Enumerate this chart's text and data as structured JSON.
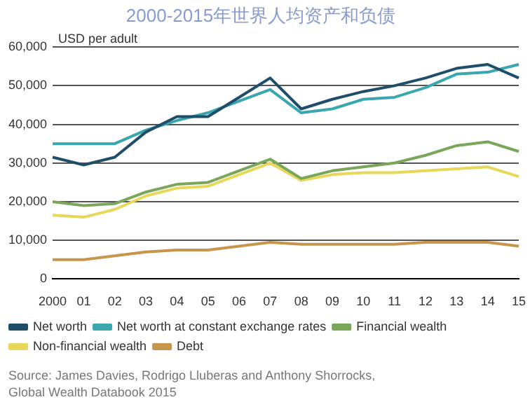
{
  "chart_data": {
    "type": "line",
    "title": "2000-2015年世界人均资产和负债",
    "ylabel": "USD per adult",
    "categories": [
      "2000",
      "01",
      "02",
      "03",
      "04",
      "05",
      "06",
      "07",
      "08",
      "09",
      "10",
      "11",
      "12",
      "13",
      "14",
      "15"
    ],
    "series": [
      {
        "name": "Net worth",
        "color": "#1f4e6b",
        "values": [
          31500,
          29500,
          31500,
          38000,
          42000,
          42000,
          47000,
          52000,
          44000,
          46500,
          48500,
          50000,
          52000,
          54500,
          55500,
          52000
        ]
      },
      {
        "name": "Net worth at constant exchange rates",
        "color": "#3aa6b0",
        "values": [
          35000,
          35000,
          35000,
          38500,
          41000,
          43000,
          46000,
          49000,
          43000,
          44000,
          46500,
          47000,
          49500,
          53000,
          53500,
          55500
        ]
      },
      {
        "name": "Financial wealth",
        "color": "#7aa65a",
        "values": [
          20000,
          19000,
          19500,
          22500,
          24500,
          25000,
          28000,
          31000,
          26000,
          28000,
          29000,
          30000,
          32000,
          34500,
          35500,
          33000
        ]
      },
      {
        "name": "Non-financial wealth",
        "color": "#e8d85a",
        "values": [
          16500,
          16000,
          18000,
          21500,
          23500,
          24000,
          27000,
          30000,
          25500,
          27000,
          27500,
          27500,
          28000,
          28500,
          29000,
          26500
        ]
      },
      {
        "name": "Debt",
        "color": "#c8964a",
        "values": [
          5000,
          5000,
          6000,
          7000,
          7500,
          7500,
          8500,
          9500,
          9000,
          9000,
          9000,
          9000,
          9500,
          9500,
          9500,
          8500
        ]
      }
    ],
    "ylim": [
      0,
      60000
    ],
    "yticks": [
      {
        "value": 0,
        "label": "0"
      },
      {
        "value": 10000,
        "label": "10,000"
      },
      {
        "value": 20000,
        "label": "20,000"
      },
      {
        "value": 30000,
        "label": "30,000"
      },
      {
        "value": 40000,
        "label": "40,000"
      },
      {
        "value": 50000,
        "label": "50,000"
      },
      {
        "value": 60000,
        "label": "60,000"
      }
    ],
    "grid": "y",
    "legend": "bottom",
    "marker": "none",
    "line_style": "solid",
    "annotations": [
      "Source: James Davies, Rodrigo Lluberas and Anthony Shorrocks,",
      "Global Wealth Databook 2015"
    ]
  }
}
